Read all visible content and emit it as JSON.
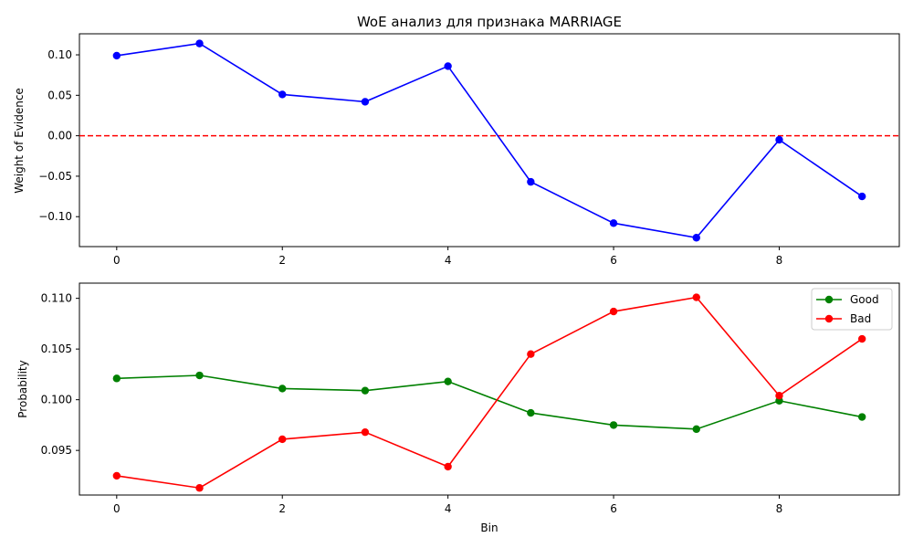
{
  "chart_data": [
    {
      "type": "line",
      "title": "WoE анализ для признака MARRIAGE",
      "xlabel": "",
      "ylabel": "Weight of Evidence",
      "x": [
        0,
        1,
        2,
        3,
        4,
        5,
        6,
        7,
        8,
        9
      ],
      "xlim": [
        -0.45,
        9.45
      ],
      "ylim": [
        -0.137,
        0.126
      ],
      "xticks": [
        0,
        2,
        4,
        6,
        8
      ],
      "yticks": [
        -0.1,
        -0.05,
        0.0,
        0.05,
        0.1
      ],
      "ytick_labels": [
        "−0.10",
        "−0.05",
        "0.00",
        "0.05",
        "0.10"
      ],
      "grid": false,
      "reference_line": {
        "y": 0,
        "style": "dashed",
        "color": "#ff0000"
      },
      "series": [
        {
          "color": "#0000ff",
          "marker": "circle",
          "values": [
            0.099,
            0.114,
            0.051,
            0.042,
            0.086,
            -0.057,
            -0.108,
            -0.126,
            -0.005,
            -0.075
          ]
        }
      ]
    },
    {
      "type": "line",
      "title": "",
      "xlabel": "Bin",
      "ylabel": "Probability",
      "x": [
        0,
        1,
        2,
        3,
        4,
        5,
        6,
        7,
        8,
        9
      ],
      "xlim": [
        -0.45,
        9.45
      ],
      "ylim": [
        0.0906,
        0.1115
      ],
      "xticks": [
        0,
        2,
        4,
        6,
        8
      ],
      "yticks": [
        0.095,
        0.1,
        0.105,
        0.11
      ],
      "ytick_labels": [
        "0.095",
        "0.100",
        "0.105",
        "0.110"
      ],
      "grid": false,
      "legend": "top-right",
      "series": [
        {
          "name": "Good",
          "color": "#008000",
          "marker": "circle",
          "values": [
            0.1021,
            0.1024,
            0.1011,
            0.1009,
            0.1018,
            0.0987,
            0.0975,
            0.0971,
            0.0999,
            0.0983
          ]
        },
        {
          "name": "Bad",
          "color": "#ff0000",
          "marker": "circle",
          "values": [
            0.0925,
            0.0913,
            0.0961,
            0.0968,
            0.0934,
            0.1045,
            0.1087,
            0.1101,
            0.1004,
            0.106
          ]
        }
      ]
    }
  ]
}
